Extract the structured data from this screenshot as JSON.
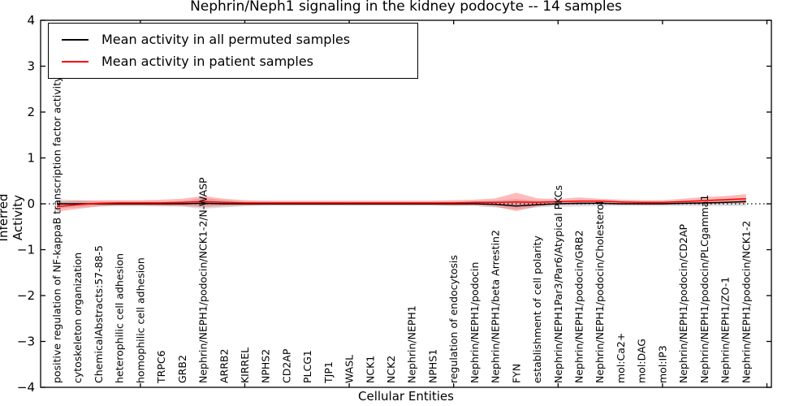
{
  "title": "Nephrin/Neph1 signaling in the kidney podocyte -- 14 samples",
  "legend": {
    "items": [
      {
        "label": "Mean activity in all permuted samples",
        "color": "#000000"
      },
      {
        "label": "Mean activity in patient samples",
        "color": "#ff0000"
      }
    ]
  },
  "axes": {
    "xlabel": "Cellular Entities",
    "ylabel": "Inferred Activity",
    "yticks": [
      4,
      3,
      2,
      1,
      0,
      -1,
      -2,
      -3,
      -4
    ]
  },
  "chart_data": {
    "type": "line",
    "title": "Nephrin/Neph1 signaling in the kidney podocyte -- 14 samples",
    "xlabel": "Cellular Entities",
    "ylabel": "Inferred Activity",
    "ylim": [
      -4,
      4
    ],
    "grid": false,
    "legend_position": "upper left",
    "zero_line": 0,
    "categories": [
      "positive regulation of NF-kappaB transcription factor activity",
      "cytoskeleton organization",
      "ChemicalAbstracts:57-88-5",
      "heterophilic cell adhesion",
      "homophilic cell adhesion",
      "TRPC6",
      "GRB2",
      "Nephrin/NEPH1/podocin/NCK1-2/N-WASP",
      "ARRB2",
      "KIRREL",
      "NPHS2",
      "CD2AP",
      "PLCG1",
      "TJP1",
      "WASL",
      "NCK1",
      "NCK2",
      "Nephrin/NEPH1",
      "NPHS1",
      "regulation of endocytosis",
      "Nephrin/NEPH1/podocin",
      "Nephrin/NEPH1/beta Arrestin2",
      "FYN",
      "establishment of cell polarity",
      "Nephrin/NEPH1Par3/Par6/Atypical PKCs",
      "Nephrin/NEPH1/podocin/GRB2",
      "Nephrin/NEPH1/podocin/Cholesterol",
      "mol:Ca2+",
      "mol:DAG",
      "mol:IP3",
      "Nephrin/NEPH1/podocin/CD2AP",
      "Nephrin/NEPH1/podocin/PLCgamma1",
      "Nephrin/NEPH1/ZO-1",
      "Nephrin/NEPH1/podocin/NCK1-2"
    ],
    "series": [
      {
        "name": "Mean activity in all permuted samples",
        "color": "#000000",
        "values": [
          0.0,
          0.0,
          0.0,
          0.0,
          0.0,
          0.0,
          0.0,
          0.01,
          0.0,
          0.0,
          0.0,
          0.0,
          0.0,
          0.0,
          0.0,
          0.0,
          0.0,
          0.0,
          0.0,
          0.0,
          0.0,
          -0.01,
          -0.05,
          -0.02,
          0.0,
          0.01,
          0.01,
          0.0,
          0.0,
          0.0,
          0.01,
          0.02,
          0.03,
          0.05
        ]
      },
      {
        "name": "Mean activity in patient samples",
        "color": "#ff0000",
        "values": [
          -0.06,
          -0.02,
          0.01,
          0.02,
          0.02,
          0.02,
          0.03,
          0.05,
          0.03,
          0.02,
          0.02,
          0.02,
          0.02,
          0.02,
          0.02,
          0.02,
          0.02,
          0.02,
          0.02,
          0.02,
          0.03,
          0.03,
          0.04,
          0.03,
          0.05,
          0.06,
          0.06,
          0.04,
          0.03,
          0.03,
          0.05,
          0.07,
          0.09,
          0.11
        ]
      }
    ],
    "bands": [
      {
        "name": "permuted-samples-range",
        "color": "#000000",
        "opacity": 0.13,
        "upper": [
          0.1,
          0.08,
          0.05,
          0.05,
          0.05,
          0.05,
          0.06,
          0.13,
          0.08,
          0.05,
          0.04,
          0.04,
          0.04,
          0.04,
          0.04,
          0.04,
          0.04,
          0.04,
          0.04,
          0.05,
          0.05,
          0.07,
          0.1,
          0.07,
          0.06,
          0.07,
          0.06,
          0.05,
          0.05,
          0.05,
          0.06,
          0.07,
          0.08,
          0.1
        ],
        "lower": [
          -0.1,
          -0.08,
          -0.05,
          -0.05,
          -0.05,
          -0.05,
          -0.06,
          -0.11,
          -0.08,
          -0.05,
          -0.04,
          -0.04,
          -0.04,
          -0.04,
          -0.04,
          -0.04,
          -0.04,
          -0.04,
          -0.04,
          -0.05,
          -0.05,
          -0.08,
          -0.12,
          -0.08,
          -0.06,
          -0.06,
          -0.05,
          -0.05,
          -0.05,
          -0.05,
          -0.05,
          -0.05,
          -0.05,
          -0.05
        ]
      },
      {
        "name": "patient-samples-range",
        "color": "#ff0000",
        "opacity": 0.27,
        "upper": [
          0.05,
          0.07,
          0.08,
          0.08,
          0.08,
          0.09,
          0.11,
          0.17,
          0.11,
          0.08,
          0.07,
          0.07,
          0.07,
          0.07,
          0.07,
          0.07,
          0.07,
          0.07,
          0.07,
          0.08,
          0.09,
          0.12,
          0.24,
          0.12,
          0.1,
          0.14,
          0.11,
          0.09,
          0.08,
          0.08,
          0.11,
          0.15,
          0.17,
          0.21
        ],
        "lower": [
          -0.17,
          -0.11,
          -0.06,
          -0.04,
          -0.04,
          -0.05,
          -0.05,
          -0.07,
          -0.05,
          -0.04,
          -0.03,
          -0.03,
          -0.03,
          -0.03,
          -0.03,
          -0.03,
          -0.03,
          -0.03,
          -0.03,
          -0.04,
          -0.03,
          -0.06,
          -0.16,
          -0.06,
          0.0,
          -0.02,
          0.01,
          -0.01,
          -0.02,
          -0.02,
          -0.01,
          -0.01,
          0.01,
          0.01
        ]
      }
    ]
  }
}
